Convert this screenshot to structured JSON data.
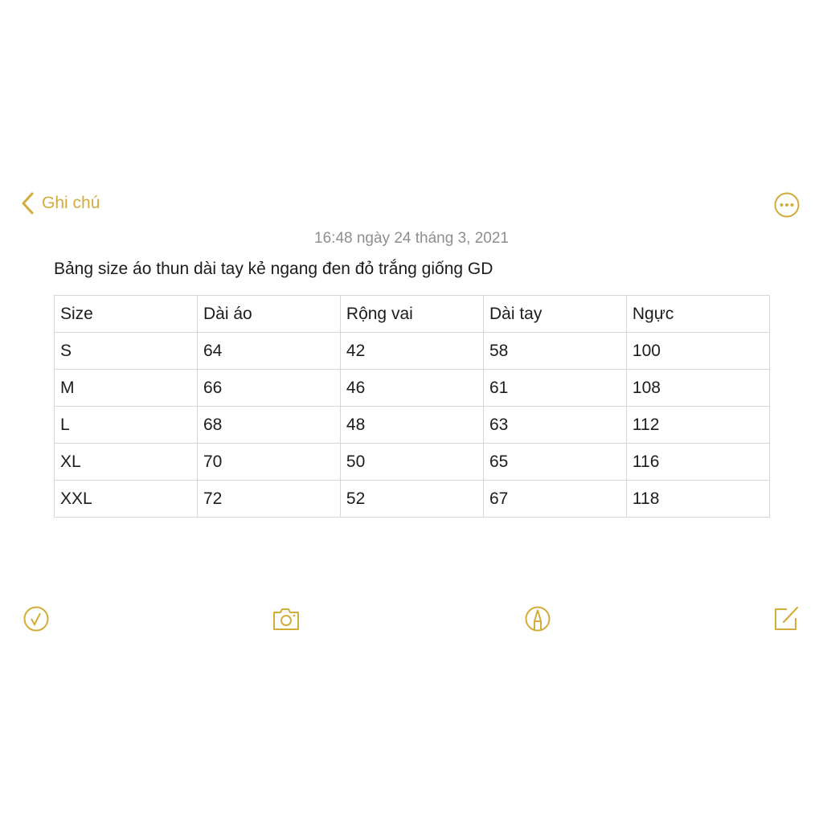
{
  "nav": {
    "back_label": "Ghi chú",
    "back_icon": "chevron-left-icon",
    "more_icon": "ellipsis-circle-icon"
  },
  "note": {
    "date": "16:48 ngày 24 tháng 3, 2021",
    "title": "Bảng size áo thun dài tay kẻ ngang đen đỏ trắng giống GD",
    "table": [
      [
        "Size",
        "Dài áo",
        "Rộng vai",
        "Dài tay",
        "Ngực"
      ],
      [
        "S",
        "64",
        "42",
        "58",
        "100"
      ],
      [
        "M",
        "66",
        "46",
        "61",
        "108"
      ],
      [
        "L",
        "68",
        "48",
        "63",
        "112"
      ],
      [
        "XL",
        "70",
        "50",
        "65",
        "116"
      ],
      [
        "XXL",
        "72",
        "52",
        "67",
        "118"
      ]
    ]
  },
  "toolbar": [
    "checklist-icon",
    "camera-icon",
    "markup-icon",
    "compose-icon"
  ],
  "colors": {
    "accent": "#D3AC3C",
    "text": "#1c1c1e",
    "date": "#8e8e93",
    "border": "#d6d6d6"
  }
}
